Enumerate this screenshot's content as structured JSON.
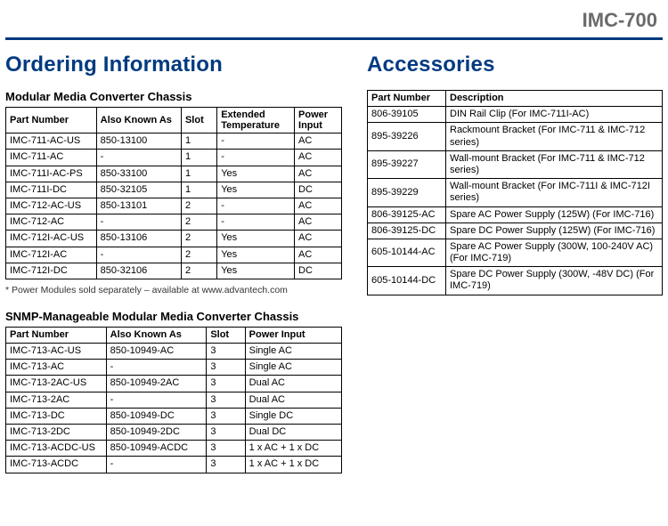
{
  "productCode": "IMC-700",
  "left": {
    "heading": "Ordering Information",
    "sub1": "Modular Media Converter Chassis",
    "table1": {
      "headers": {
        "pn": "Part Number",
        "aka": "Also Known As",
        "slot": "Slot",
        "ext": "Extended Temperature",
        "pi": "Power Input"
      },
      "rows": [
        {
          "pn": "IMC-711-AC-US",
          "aka": "850-13100",
          "slot": "1",
          "ext": "-",
          "pi": "AC"
        },
        {
          "pn": "IMC-711-AC",
          "aka": "-",
          "slot": "1",
          "ext": "-",
          "pi": "AC"
        },
        {
          "pn": "IMC-711I-AC-PS",
          "aka": "850-33100",
          "slot": "1",
          "ext": "Yes",
          "pi": "AC"
        },
        {
          "pn": "IMC-711I-DC",
          "aka": "850-32105",
          "slot": "1",
          "ext": "Yes",
          "pi": "DC"
        },
        {
          "pn": "IMC-712-AC-US",
          "aka": "850-13101",
          "slot": "2",
          "ext": "-",
          "pi": "AC"
        },
        {
          "pn": "IMC-712-AC",
          "aka": "-",
          "slot": "2",
          "ext": "-",
          "pi": "AC"
        },
        {
          "pn": "IMC-712I-AC-US",
          "aka": "850-13106",
          "slot": "2",
          "ext": "Yes",
          "pi": "AC"
        },
        {
          "pn": "IMC-712I-AC",
          "aka": "-",
          "slot": "2",
          "ext": "Yes",
          "pi": "AC"
        },
        {
          "pn": "IMC-712I-DC",
          "aka": "850-32106",
          "slot": "2",
          "ext": "Yes",
          "pi": "DC"
        }
      ]
    },
    "footnote": "* Power Modules sold separately – available at www.advantech.com",
    "sub2": "SNMP-Manageable Modular Media Converter Chassis",
    "table2": {
      "headers": {
        "pn": "Part Number",
        "aka": "Also Known As",
        "slot": "Slot",
        "pi": "Power Input"
      },
      "rows": [
        {
          "pn": "IMC-713-AC-US",
          "aka": "850-10949-AC",
          "slot": "3",
          "pi": "Single AC"
        },
        {
          "pn": "IMC-713-AC",
          "aka": "-",
          "slot": "3",
          "pi": "Single AC"
        },
        {
          "pn": "IMC-713-2AC-US",
          "aka": "850-10949-2AC",
          "slot": "3",
          "pi": "Dual AC"
        },
        {
          "pn": "IMC-713-2AC",
          "aka": "-",
          "slot": "3",
          "pi": "Dual AC"
        },
        {
          "pn": "IMC-713-DC",
          "aka": "850-10949-DC",
          "slot": "3",
          "pi": "Single DC"
        },
        {
          "pn": "IMC-713-2DC",
          "aka": "850-10949-2DC",
          "slot": "3",
          "pi": "Dual DC"
        },
        {
          "pn": "IMC-713-ACDC-US",
          "aka": "850-10949-ACDC",
          "slot": "3",
          "pi": "1 x AC + 1 x DC"
        },
        {
          "pn": "IMC-713-ACDC",
          "aka": "-",
          "slot": "3",
          "pi": "1 x AC + 1 x DC"
        }
      ]
    }
  },
  "right": {
    "heading": "Accessories",
    "table3": {
      "headers": {
        "pn": "Part Number",
        "desc": "Description"
      },
      "rows": [
        {
          "pn": "806-39105",
          "desc": "DIN Rail Clip (For IMC-711I-AC)"
        },
        {
          "pn": "895-39226",
          "desc": "Rackmount Bracket (For IMC-711 & IMC-712 series)"
        },
        {
          "pn": "895-39227",
          "desc": "Wall-mount Bracket (For IMC-711 & IMC-712 series)"
        },
        {
          "pn": "895-39229",
          "desc": "Wall-mount Bracket (For IMC-711I & IMC-712I series)"
        },
        {
          "pn": "806-39125-AC",
          "desc": "Spare AC Power Supply (125W) (For IMC-716)"
        },
        {
          "pn": "806-39125-DC",
          "desc": "Spare DC Power Supply (125W) (For IMC-716)"
        },
        {
          "pn": "605-10144-AC",
          "desc": "Spare AC Power Supply (300W, 100-240V AC) (For IMC-719)"
        },
        {
          "pn": "605-10144-DC",
          "desc": "Spare DC Power Supply (300W, -48V DC) (For IMC-719)"
        }
      ]
    }
  }
}
